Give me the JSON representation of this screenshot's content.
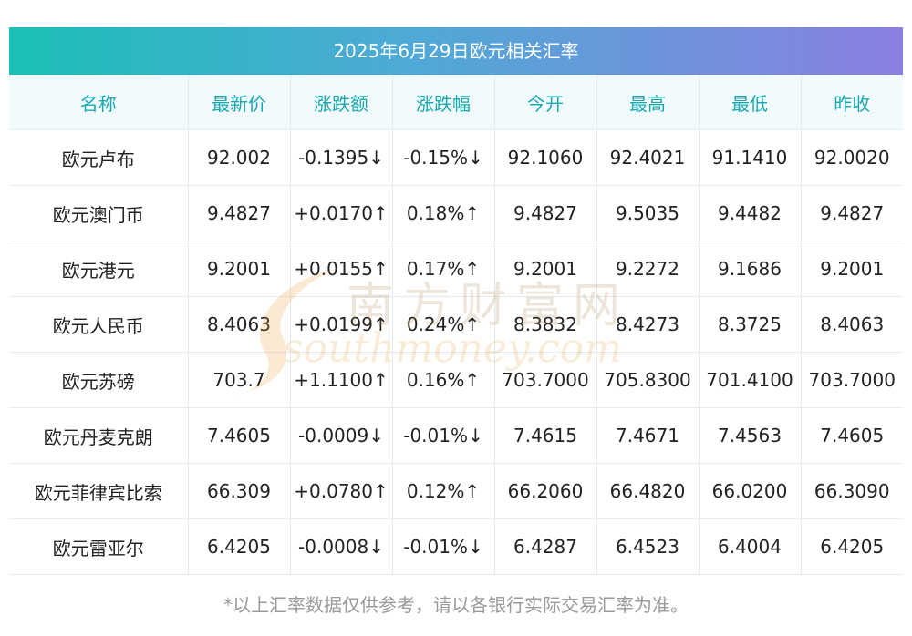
{
  "title": "2025年6月29日欧元相关汇率",
  "columns": [
    "名称",
    "最新价",
    "涨跌额",
    "涨跌幅",
    "今开",
    "最高",
    "最低",
    "昨收"
  ],
  "rows": [
    {
      "name": "欧元卢布",
      "latest": "92.002",
      "change": "-0.1395↓",
      "pct": "-0.15%↓",
      "open": "92.1060",
      "high": "92.4021",
      "low": "91.1410",
      "prev": "92.0020",
      "dir": "down"
    },
    {
      "name": "欧元澳门币",
      "latest": "9.4827",
      "change": "+0.0170↑",
      "pct": "0.18%↑",
      "open": "9.4827",
      "high": "9.5035",
      "low": "9.4482",
      "prev": "9.4827",
      "dir": "up"
    },
    {
      "name": "欧元港元",
      "latest": "9.2001",
      "change": "+0.0155↑",
      "pct": "0.17%↑",
      "open": "9.2001",
      "high": "9.2272",
      "low": "9.1686",
      "prev": "9.2001",
      "dir": "up"
    },
    {
      "name": "欧元人民币",
      "latest": "8.4063",
      "change": "+0.0199↑",
      "pct": "0.24%↑",
      "open": "8.3832",
      "high": "8.4273",
      "low": "8.3725",
      "prev": "8.4063",
      "dir": "up"
    },
    {
      "name": "欧元苏磅",
      "latest": "703.7",
      "change": "+1.1100↑",
      "pct": "0.16%↑",
      "open": "703.7000",
      "high": "705.8300",
      "low": "701.4100",
      "prev": "703.7000",
      "dir": "up"
    },
    {
      "name": "欧元丹麦克朗",
      "latest": "7.4605",
      "change": "-0.0009↓",
      "pct": "-0.01%↓",
      "open": "7.4615",
      "high": "7.4671",
      "low": "7.4563",
      "prev": "7.4605",
      "dir": "down"
    },
    {
      "name": "欧元菲律宾比索",
      "latest": "66.309",
      "change": "+0.0780↑",
      "pct": "0.12%↑",
      "open": "66.2060",
      "high": "66.4820",
      "low": "66.0200",
      "prev": "66.3090",
      "dir": "up"
    },
    {
      "name": "欧元雷亚尔",
      "latest": "6.4205",
      "change": "-0.0008↓",
      "pct": "-0.01%↓",
      "open": "6.4287",
      "high": "6.4523",
      "low": "6.4004",
      "prev": "6.4205",
      "dir": "down"
    }
  ],
  "footnote": "*以上汇率数据仅供参考，请以各银行实际交易汇率为准。",
  "watermark": {
    "cn": "南方财富网",
    "en": "southmoney.com"
  },
  "colors": {
    "up": "#e8202a",
    "down": "#1a8a2e",
    "header_text": "#1aa8b0",
    "header_bg": "#f1fbfd"
  }
}
